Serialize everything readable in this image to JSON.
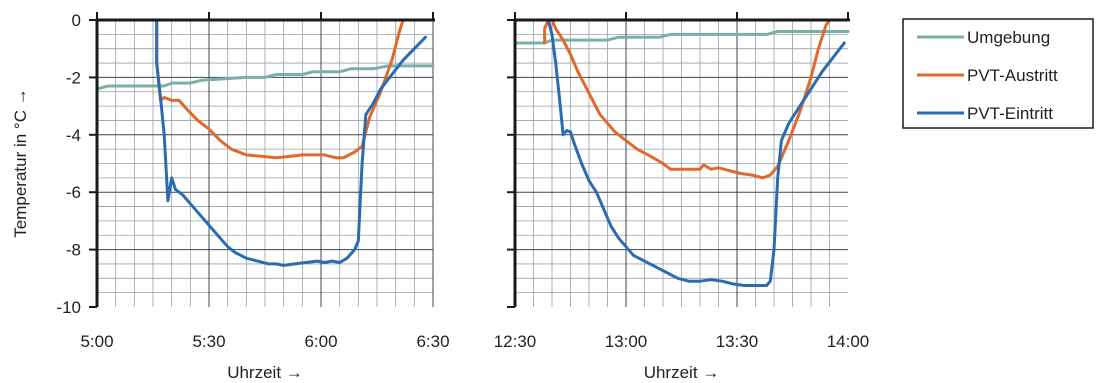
{
  "colors": {
    "umgebung": "#7aafaa",
    "austritt": "#e06a2c",
    "eintritt": "#2b6cb0",
    "grid_major": "#3d4450",
    "grid_minor": "#9aa0a8"
  },
  "legend": {
    "items": [
      {
        "label": "Umgebung",
        "color_key": "umgebung"
      },
      {
        "label": "PVT-Austritt",
        "color_key": "austritt"
      },
      {
        "label": "PVT-Eintritt",
        "color_key": "eintritt"
      }
    ]
  },
  "y_axis": {
    "label": "Temperatur in °C →",
    "ticks": [
      "0",
      "-2",
      "-4",
      "-6",
      "-8",
      "-10"
    ],
    "range": [
      -10,
      0
    ]
  },
  "chart_data": [
    {
      "type": "line",
      "xlabel": "Uhrzeit →",
      "ylabel": "Temperatur in °C →",
      "x_ticks": [
        "5:00",
        "5:30",
        "6:00",
        "6:30"
      ],
      "xlim": [
        "5:00",
        "6:30"
      ],
      "ylim": [
        -10,
        0
      ],
      "grid": true,
      "series": [
        {
          "name": "Umgebung",
          "color_key": "umgebung",
          "points": [
            [
              "5:00",
              -2.4
            ],
            [
              "5:03",
              -2.3
            ],
            [
              "5:10",
              -2.3
            ],
            [
              "5:18",
              -2.3
            ],
            [
              "5:20",
              -2.2
            ],
            [
              "5:25",
              -2.2
            ],
            [
              "5:28",
              -2.1
            ],
            [
              "5:40",
              -2.0
            ],
            [
              "5:45",
              -2.0
            ],
            [
              "5:48",
              -1.9
            ],
            [
              "5:55",
              -1.9
            ],
            [
              "5:58",
              -1.8
            ],
            [
              "6:05",
              -1.8
            ],
            [
              "6:08",
              -1.7
            ],
            [
              "6:14",
              -1.7
            ],
            [
              "6:18",
              -1.6
            ],
            [
              "6:30",
              -1.6
            ]
          ]
        },
        {
          "name": "PVT-Austritt",
          "color_key": "austritt",
          "points": [
            [
              "5:16",
              0.0
            ],
            [
              "5:16",
              -1.5
            ],
            [
              "5:17",
              -2.8
            ],
            [
              "5:18",
              -2.7
            ],
            [
              "5:20",
              -2.8
            ],
            [
              "5:22",
              -2.8
            ],
            [
              "5:24",
              -3.1
            ],
            [
              "5:27",
              -3.5
            ],
            [
              "5:30",
              -3.8
            ],
            [
              "5:33",
              -4.2
            ],
            [
              "5:36",
              -4.5
            ],
            [
              "5:40",
              -4.7
            ],
            [
              "5:44",
              -4.75
            ],
            [
              "5:48",
              -4.8
            ],
            [
              "5:52",
              -4.75
            ],
            [
              "5:55",
              -4.7
            ],
            [
              "5:58",
              -4.7
            ],
            [
              "6:01",
              -4.7
            ],
            [
              "6:04",
              -4.8
            ],
            [
              "6:06",
              -4.8
            ],
            [
              "6:09",
              -4.6
            ],
            [
              "6:11",
              -4.4
            ],
            [
              "6:13",
              -3.4
            ],
            [
              "6:16",
              -2.5
            ],
            [
              "6:19",
              -1.4
            ],
            [
              "6:21",
              -0.4
            ],
            [
              "6:22",
              0.0
            ]
          ]
        },
        {
          "name": "PVT-Eintritt",
          "color_key": "eintritt",
          "points": [
            [
              "5:16",
              0.0
            ],
            [
              "5:16",
              -1.5
            ],
            [
              "5:17",
              -2.7
            ],
            [
              "5:18",
              -4.0
            ],
            [
              "5:19",
              -6.3
            ],
            [
              "5:20",
              -5.5
            ],
            [
              "5:21",
              -5.9
            ],
            [
              "5:23",
              -6.1
            ],
            [
              "5:25",
              -6.4
            ],
            [
              "5:27",
              -6.7
            ],
            [
              "5:29",
              -7.0
            ],
            [
              "5:31",
              -7.3
            ],
            [
              "5:33",
              -7.6
            ],
            [
              "5:35",
              -7.9
            ],
            [
              "5:37",
              -8.1
            ],
            [
              "5:40",
              -8.3
            ],
            [
              "5:43",
              -8.4
            ],
            [
              "5:46",
              -8.5
            ],
            [
              "5:48",
              -8.5
            ],
            [
              "5:50",
              -8.55
            ],
            [
              "5:53",
              -8.5
            ],
            [
              "5:56",
              -8.45
            ],
            [
              "5:59",
              -8.4
            ],
            [
              "6:01",
              -8.45
            ],
            [
              "6:03",
              -8.4
            ],
            [
              "6:05",
              -8.45
            ],
            [
              "6:07",
              -8.3
            ],
            [
              "6:09",
              -8.0
            ],
            [
              "6:10",
              -7.7
            ],
            [
              "6:11",
              -5.0
            ],
            [
              "6:12",
              -3.3
            ],
            [
              "6:14",
              -2.9
            ],
            [
              "6:16",
              -2.4
            ],
            [
              "6:19",
              -1.9
            ],
            [
              "6:22",
              -1.4
            ],
            [
              "6:25",
              -1.0
            ],
            [
              "6:28",
              -0.6
            ]
          ]
        }
      ]
    },
    {
      "type": "line",
      "xlabel": "Uhrzeit →",
      "ylabel": "",
      "x_ticks": [
        "12:30",
        "13:00",
        "13:30",
        "14:00"
      ],
      "xlim": [
        "12:30",
        "14:00"
      ],
      "ylim": [
        -10,
        0
      ],
      "grid": true,
      "series": [
        {
          "name": "Umgebung",
          "color_key": "umgebung",
          "points": [
            [
              "12:30",
              -0.8
            ],
            [
              "12:38",
              -0.8
            ],
            [
              "12:40",
              -0.7
            ],
            [
              "12:55",
              -0.7
            ],
            [
              "12:58",
              -0.6
            ],
            [
              "13:05",
              -0.6
            ],
            [
              "13:09",
              -0.6
            ],
            [
              "13:12",
              -0.5
            ],
            [
              "13:30",
              -0.5
            ],
            [
              "13:38",
              -0.5
            ],
            [
              "13:41",
              -0.4
            ],
            [
              "13:50",
              -0.4
            ],
            [
              "14:00",
              -0.4
            ]
          ]
        },
        {
          "name": "PVT-Austritt",
          "color_key": "austritt",
          "points": [
            [
              "12:38",
              -0.8
            ],
            [
              "12:38",
              -0.3
            ],
            [
              "12:39",
              0.0
            ],
            [
              "12:40",
              0.0
            ],
            [
              "12:41",
              -0.3
            ],
            [
              "12:43",
              -0.7
            ],
            [
              "12:45",
              -1.2
            ],
            [
              "12:47",
              -1.8
            ],
            [
              "12:49",
              -2.3
            ],
            [
              "12:51",
              -2.8
            ],
            [
              "12:53",
              -3.3
            ],
            [
              "12:55",
              -3.6
            ],
            [
              "12:57",
              -3.9
            ],
            [
              "12:59",
              -4.1
            ],
            [
              "13:01",
              -4.3
            ],
            [
              "13:03",
              -4.5
            ],
            [
              "13:06",
              -4.7
            ],
            [
              "13:08",
              -4.85
            ],
            [
              "13:10",
              -5.0
            ],
            [
              "13:12",
              -5.2
            ],
            [
              "13:15",
              -5.2
            ],
            [
              "13:18",
              -5.2
            ],
            [
              "13:20",
              -5.2
            ],
            [
              "13:21",
              -5.05
            ],
            [
              "13:23",
              -5.2
            ],
            [
              "13:25",
              -5.15
            ],
            [
              "13:28",
              -5.25
            ],
            [
              "13:31",
              -5.35
            ],
            [
              "13:34",
              -5.4
            ],
            [
              "13:37",
              -5.5
            ],
            [
              "13:39",
              -5.4
            ],
            [
              "13:41",
              -5.1
            ],
            [
              "13:44",
              -4.2
            ],
            [
              "13:47",
              -3.2
            ],
            [
              "13:50",
              -2.0
            ],
            [
              "13:52",
              -1.0
            ],
            [
              "13:54",
              -0.2
            ],
            [
              "13:55",
              0.0
            ]
          ]
        },
        {
          "name": "PVT-Eintritt",
          "color_key": "eintritt",
          "points": [
            [
              "12:39",
              0.0
            ],
            [
              "12:40",
              -0.5
            ],
            [
              "12:41",
              -1.5
            ],
            [
              "12:42",
              -2.7
            ],
            [
              "12:43",
              -4.0
            ],
            [
              "12:44",
              -3.85
            ],
            [
              "12:45",
              -3.9
            ],
            [
              "12:46",
              -4.3
            ],
            [
              "12:48",
              -5.0
            ],
            [
              "12:50",
              -5.6
            ],
            [
              "12:52",
              -6.0
            ],
            [
              "12:54",
              -6.6
            ],
            [
              "12:56",
              -7.2
            ],
            [
              "12:58",
              -7.6
            ],
            [
              "13:00",
              -7.9
            ],
            [
              "13:02",
              -8.2
            ],
            [
              "13:05",
              -8.4
            ],
            [
              "13:08",
              -8.6
            ],
            [
              "13:11",
              -8.8
            ],
            [
              "13:14",
              -9.0
            ],
            [
              "13:17",
              -9.1
            ],
            [
              "13:20",
              -9.1
            ],
            [
              "13:23",
              -9.05
            ],
            [
              "13:26",
              -9.1
            ],
            [
              "13:29",
              -9.2
            ],
            [
              "13:32",
              -9.25
            ],
            [
              "13:35",
              -9.25
            ],
            [
              "13:38",
              -9.25
            ],
            [
              "13:39",
              -9.1
            ],
            [
              "13:40",
              -8.0
            ],
            [
              "13:41",
              -5.5
            ],
            [
              "13:42",
              -4.2
            ],
            [
              "13:44",
              -3.6
            ],
            [
              "13:47",
              -3.0
            ],
            [
              "13:50",
              -2.4
            ],
            [
              "13:53",
              -1.8
            ],
            [
              "13:56",
              -1.3
            ],
            [
              "13:59",
              -0.8
            ]
          ]
        }
      ]
    }
  ]
}
